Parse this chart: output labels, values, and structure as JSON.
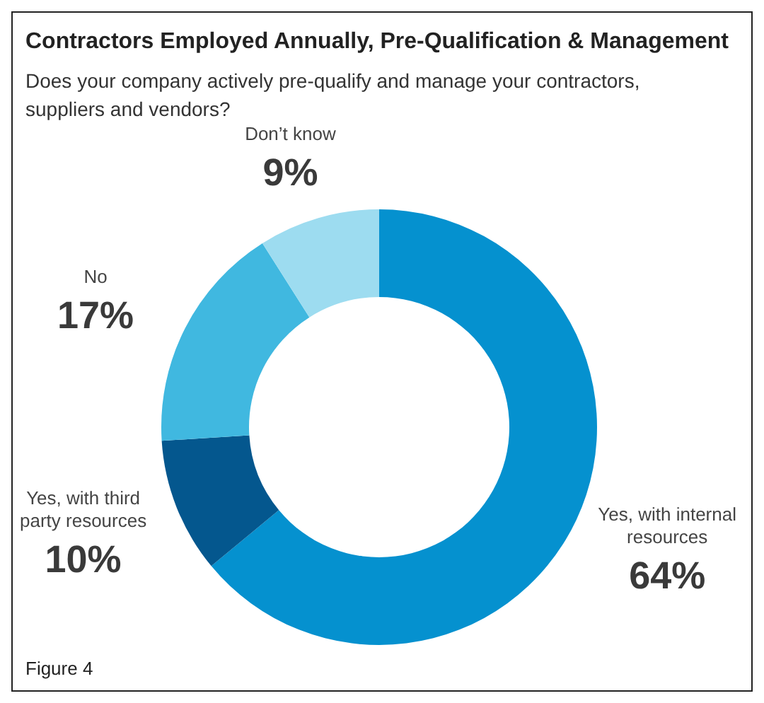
{
  "chart_data": {
    "type": "donut",
    "title": "Contractors Employed Annually, Pre-Qualification & Management",
    "subtitle": "Does your company actively pre-qualify and manage your contractors, suppliers and vendors?",
    "categories": [
      "Yes, with internal resources",
      "Yes, with third party resources",
      "No",
      "Don’t know"
    ],
    "values": [
      64,
      10,
      17,
      9
    ],
    "value_labels": [
      "64%",
      "10%",
      "17%",
      "9%"
    ],
    "colors": [
      "#0591cf",
      "#04578e",
      "#40b8e0",
      "#9ddcf0"
    ],
    "annotations": [
      "Figure 4"
    ]
  }
}
